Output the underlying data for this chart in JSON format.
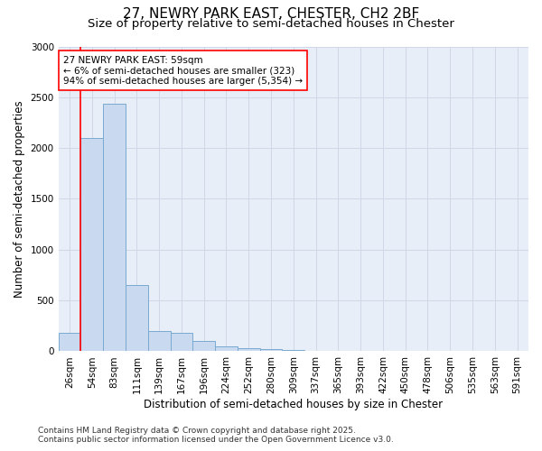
{
  "title_line1": "27, NEWRY PARK EAST, CHESTER, CH2 2BF",
  "title_line2": "Size of property relative to semi-detached houses in Chester",
  "xlabel": "Distribution of semi-detached houses by size in Chester",
  "ylabel": "Number of semi-detached properties",
  "categories": [
    "26sqm",
    "54sqm",
    "83sqm",
    "111sqm",
    "139sqm",
    "167sqm",
    "196sqm",
    "224sqm",
    "252sqm",
    "280sqm",
    "309sqm",
    "337sqm",
    "365sqm",
    "393sqm",
    "422sqm",
    "450sqm",
    "478sqm",
    "506sqm",
    "535sqm",
    "563sqm",
    "591sqm"
  ],
  "values": [
    180,
    2100,
    2440,
    650,
    200,
    185,
    100,
    45,
    35,
    20,
    10,
    0,
    0,
    0,
    0,
    0,
    0,
    0,
    0,
    0,
    0
  ],
  "bar_color": "#c8d9f0",
  "bar_edge_color": "#7aaad0",
  "grid_color": "#d0d8e8",
  "background_color": "#e8eef8",
  "annotation_text": "27 NEWRY PARK EAST: 59sqm\n← 6% of semi-detached houses are smaller (323)\n94% of semi-detached houses are larger (5,354) →",
  "red_line_x": 0.5,
  "ylim": [
    0,
    3000
  ],
  "yticks": [
    0,
    500,
    1000,
    1500,
    2000,
    2500,
    3000
  ],
  "footer_line1": "Contains HM Land Registry data © Crown copyright and database right 2025.",
  "footer_line2": "Contains public sector information licensed under the Open Government Licence v3.0.",
  "title_fontsize": 11,
  "subtitle_fontsize": 9.5,
  "axis_label_fontsize": 8.5,
  "tick_fontsize": 7.5,
  "annotation_fontsize": 7.5,
  "footer_fontsize": 6.5
}
